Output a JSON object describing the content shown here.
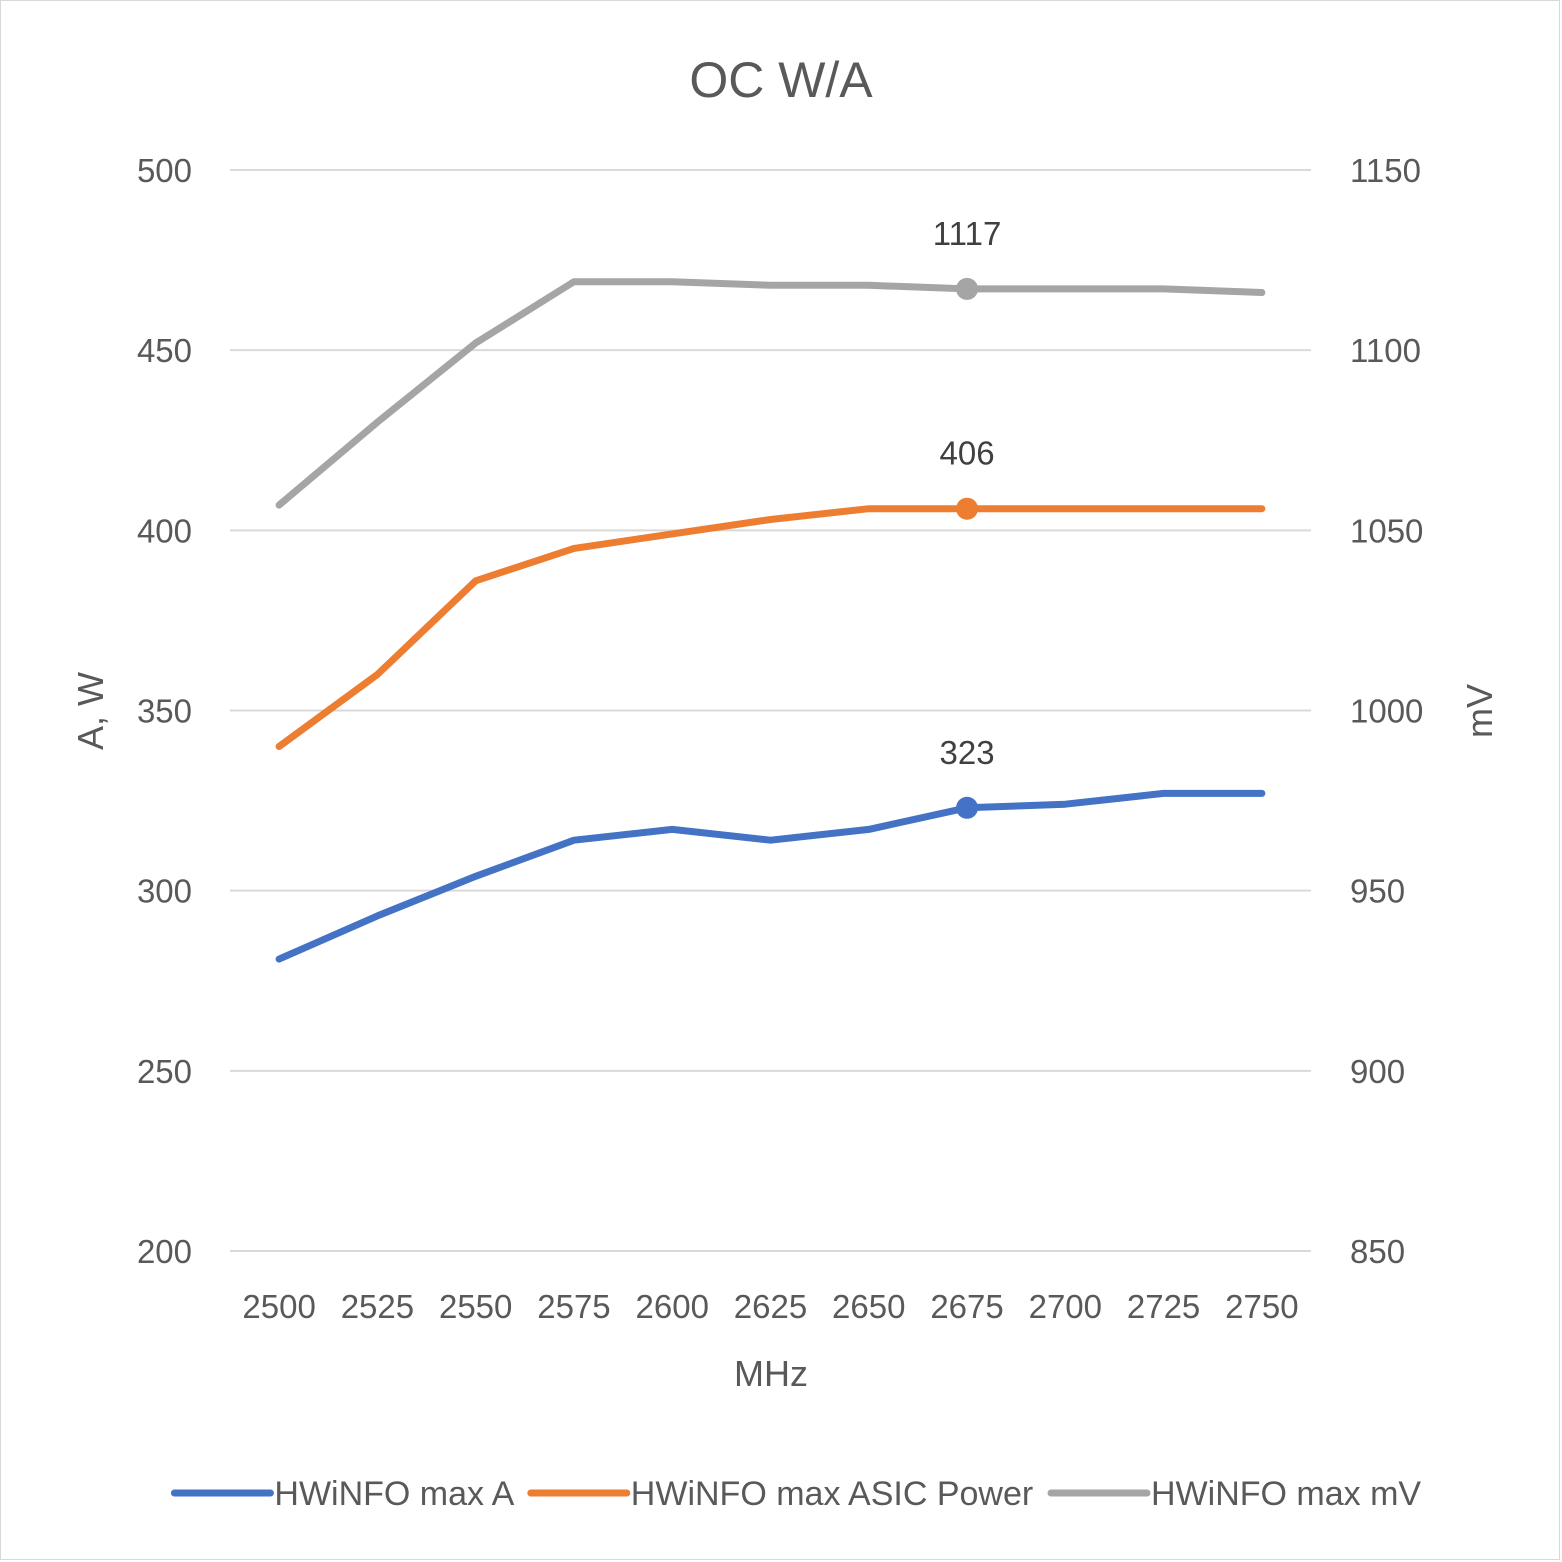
{
  "chart_data": {
    "type": "line",
    "title": "OC W/A",
    "xlabel": "MHz",
    "ylabel": "A, W",
    "y2label": "mV",
    "ylim": [
      200,
      500
    ],
    "y2lim": [
      850,
      1150
    ],
    "yticks": [
      200,
      250,
      300,
      350,
      400,
      450,
      500
    ],
    "y2ticks": [
      850,
      900,
      950,
      1000,
      1050,
      1100,
      1150
    ],
    "categories": [
      "2500",
      "2525",
      "2550",
      "2575",
      "2600",
      "2625",
      "2650",
      "2675",
      "2700",
      "2725",
      "2750"
    ],
    "grid": true,
    "legend_position": "bottom",
    "series": [
      {
        "name": "HWiNFO max A",
        "axis": "left",
        "color": "#4472C4",
        "values": [
          281,
          293,
          304,
          314,
          317,
          314,
          317,
          323,
          324,
          327,
          327
        ],
        "labeled_index": 7,
        "label": "323"
      },
      {
        "name": "HWiNFO max ASIC Power",
        "axis": "left",
        "color": "#ED7D31",
        "values": [
          340,
          360,
          386,
          395,
          399,
          403,
          406,
          406,
          406,
          406,
          406
        ],
        "labeled_index": 7,
        "label": "406"
      },
      {
        "name": "HWiNFO max mV",
        "axis": "right",
        "color": "#A5A5A5",
        "values": [
          1057,
          1080,
          1102,
          1119,
          1119,
          1118,
          1118,
          1117,
          1117,
          1117,
          1116
        ],
        "labeled_index": 7,
        "label": "1117"
      }
    ]
  }
}
